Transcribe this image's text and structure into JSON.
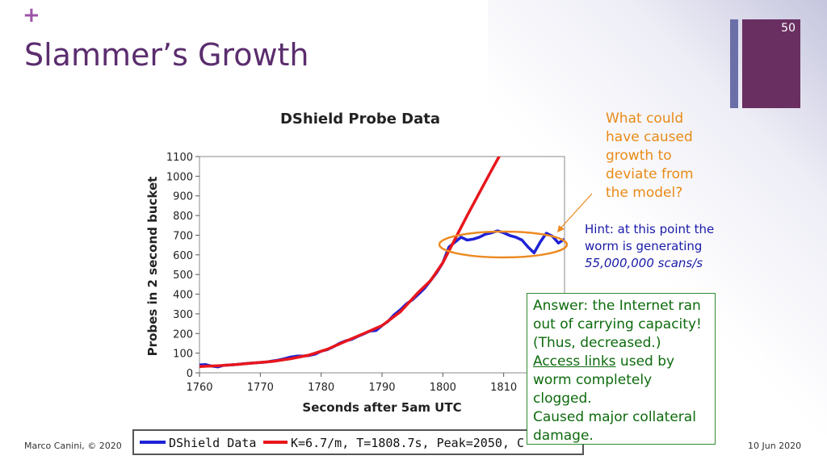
{
  "slide": {
    "plus": "+",
    "title": "Slammer’s Growth",
    "page_number": "50",
    "footer_left": "Marco Canini, © 2020",
    "footer_right": "10 Jun 2020"
  },
  "question": "What could have caused growth to deviate from the model?",
  "hint": {
    "text": "Hint: at this point the worm is generating",
    "emphasis": "55,000,000 scans/s"
  },
  "answer": {
    "line1": "Answer: the Internet ran out of carrying capacity!",
    "line2": "(Thus,   decreased.)",
    "link": "Access links",
    "line3_rest": " used by worm completely clogged.",
    "line4": "Caused major collateral damage."
  },
  "colors": {
    "title": "#5b2d6e",
    "accent_purple": "#6a2f61",
    "accent_blue": "#6b6fa8",
    "question": "#e98a16",
    "hint": "#1a1aa8",
    "answer": "#0d6b0d",
    "data_line": "#1f22d6",
    "model_line": "#e8161c",
    "ellipse": "#ec8a22"
  },
  "chart_data": {
    "type": "line",
    "title": "DShield Probe Data",
    "xlabel": "Seconds after 5am UTC",
    "ylabel": "Probes in 2 second bucket",
    "xlim": [
      1760,
      1820
    ],
    "ylim": [
      0,
      1100
    ],
    "x_ticks": [
      "1760",
      "1770",
      "1780",
      "1790",
      "1800",
      "1810"
    ],
    "y_ticks": [
      "0",
      "100",
      "200",
      "300",
      "400",
      "500",
      "600",
      "700",
      "800",
      "900",
      "1000",
      "1100"
    ],
    "series": [
      {
        "name": "DShield Data",
        "points": [
          [
            1760,
            40
          ],
          [
            1761,
            42
          ],
          [
            1762,
            34
          ],
          [
            1763,
            30
          ],
          [
            1764,
            38
          ],
          [
            1765,
            40
          ],
          [
            1766,
            42
          ],
          [
            1767,
            45
          ],
          [
            1768,
            48
          ],
          [
            1769,
            50
          ],
          [
            1770,
            52
          ],
          [
            1771,
            55
          ],
          [
            1772,
            60
          ],
          [
            1773,
            65
          ],
          [
            1774,
            72
          ],
          [
            1775,
            80
          ],
          [
            1776,
            85
          ],
          [
            1777,
            85
          ],
          [
            1778,
            88
          ],
          [
            1779,
            95
          ],
          [
            1780,
            110
          ],
          [
            1781,
            118
          ],
          [
            1782,
            132
          ],
          [
            1783,
            150
          ],
          [
            1784,
            162
          ],
          [
            1785,
            170
          ],
          [
            1786,
            185
          ],
          [
            1787,
            198
          ],
          [
            1788,
            212
          ],
          [
            1789,
            215
          ],
          [
            1790,
            240
          ],
          [
            1791,
            262
          ],
          [
            1792,
            295
          ],
          [
            1793,
            320
          ],
          [
            1794,
            350
          ],
          [
            1795,
            372
          ],
          [
            1796,
            400
          ],
          [
            1797,
            430
          ],
          [
            1798,
            470
          ],
          [
            1799,
            510
          ],
          [
            1800,
            560
          ],
          [
            1801,
            640
          ],
          [
            1802,
            665
          ],
          [
            1803,
            690
          ],
          [
            1804,
            675
          ],
          [
            1805,
            680
          ],
          [
            1806,
            690
          ],
          [
            1807,
            705
          ],
          [
            1808,
            712
          ],
          [
            1809,
            722
          ],
          [
            1810,
            712
          ],
          [
            1811,
            698
          ],
          [
            1812,
            690
          ],
          [
            1813,
            675
          ],
          [
            1814,
            640
          ],
          [
            1815,
            610
          ],
          [
            1816,
            665
          ],
          [
            1817,
            710
          ],
          [
            1818,
            695
          ],
          [
            1819,
            660
          ],
          [
            1820,
            680
          ]
        ]
      },
      {
        "name": "K=6.7/m, T=1808.7s, Peak=2050, C",
        "points": [
          [
            1760,
            32
          ],
          [
            1763,
            36
          ],
          [
            1766,
            42
          ],
          [
            1769,
            50
          ],
          [
            1772,
            58
          ],
          [
            1775,
            72
          ],
          [
            1778,
            90
          ],
          [
            1781,
            120
          ],
          [
            1784,
            160
          ],
          [
            1787,
            200
          ],
          [
            1790,
            240
          ],
          [
            1793,
            310
          ],
          [
            1796,
            410
          ],
          [
            1798,
            470
          ],
          [
            1800,
            560
          ],
          [
            1802,
            680
          ],
          [
            1804,
            800
          ],
          [
            1806,
            915
          ],
          [
            1808,
            1030
          ],
          [
            1809.6,
            1120
          ]
        ]
      }
    ],
    "legend": "bottom"
  }
}
